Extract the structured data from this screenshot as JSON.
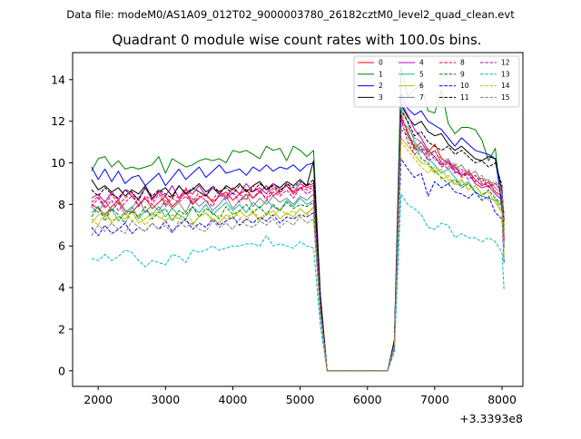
{
  "suptitle": "Data file: modeM0/AS1A09_012T02_9000003780_26182cztM0_level2_quad_clean.evt",
  "chart_data": {
    "type": "line",
    "title": "Quadrant 0 module wise count rates with 100.0s bins.",
    "xlabel": "",
    "ylabel": "",
    "x_offset_label": "+3.3393e8",
    "xlim": [
      1620,
      8310
    ],
    "ylim": [
      -0.75,
      15.3
    ],
    "xticks": [
      2000,
      3000,
      4000,
      5000,
      6000,
      7000,
      8000
    ],
    "yticks": [
      0,
      2,
      4,
      6,
      8,
      10,
      12,
      14
    ],
    "grid": false,
    "legend_position": "top-right",
    "x": [
      1900,
      2000,
      2100,
      2200,
      2300,
      2400,
      2500,
      2600,
      2700,
      2800,
      2900,
      3000,
      3100,
      3200,
      3300,
      3400,
      3500,
      3600,
      3700,
      3800,
      3900,
      4000,
      4100,
      4200,
      4300,
      4400,
      4500,
      4600,
      4700,
      4800,
      4900,
      5000,
      5100,
      5200,
      5300,
      5400,
      5500,
      5600,
      5700,
      5800,
      5900,
      6000,
      6100,
      6200,
      6300,
      6400,
      6500,
      6600,
      6700,
      6800,
      6900,
      7000,
      7100,
      7200,
      7300,
      7400,
      7500,
      7600,
      7700,
      7800,
      7900,
      8000,
      8030
    ],
    "series": [
      {
        "name": "0",
        "color": "#ff0000",
        "dash": "solid",
        "values": [
          8.0,
          7.8,
          7.5,
          7.9,
          8.2,
          7.7,
          7.6,
          8.0,
          8.3,
          7.8,
          8.1,
          8.4,
          7.9,
          8.2,
          8.6,
          8.0,
          8.3,
          8.5,
          8.1,
          8.4,
          8.6,
          8.2,
          8.5,
          8.7,
          8.3,
          8.6,
          8.9,
          8.4,
          8.7,
          8.9,
          8.5,
          8.8,
          8.9,
          9.0,
          3.3,
          0.0,
          0.0,
          0.0,
          0.0,
          0.0,
          0.0,
          0.0,
          0.0,
          0.0,
          0.0,
          1.3,
          12.2,
          11.5,
          10.7,
          11.0,
          10.5,
          10.9,
          10.2,
          10.0,
          9.8,
          9.4,
          9.6,
          9.2,
          8.9,
          9.1,
          8.6,
          8.4,
          6.2
        ]
      },
      {
        "name": "1",
        "color": "#008000",
        "dash": "solid",
        "values": [
          9.6,
          10.2,
          10.3,
          9.8,
          10.1,
          9.7,
          9.8,
          9.7,
          9.8,
          9.9,
          10.3,
          9.5,
          10.2,
          10.0,
          9.8,
          9.9,
          10.1,
          10.2,
          10.1,
          10.2,
          10.0,
          10.6,
          10.5,
          10.6,
          10.4,
          10.2,
          10.8,
          10.6,
          10.7,
          10.1,
          10.8,
          10.6,
          10.3,
          10.6,
          3.8,
          0.0,
          0.0,
          0.0,
          0.0,
          0.0,
          0.0,
          0.0,
          0.0,
          0.0,
          0.0,
          1.5,
          14.6,
          13.2,
          13.5,
          13.8,
          12.5,
          12.4,
          13.5,
          11.9,
          11.4,
          11.7,
          11.7,
          11.6,
          11.1,
          10.1,
          10.7,
          7.6,
          7.0
        ]
      },
      {
        "name": "2",
        "color": "#0000ff",
        "dash": "solid",
        "values": [
          9.8,
          9.2,
          9.7,
          9.1,
          9.6,
          9.0,
          9.3,
          9.4,
          8.9,
          9.2,
          9.5,
          8.9,
          9.3,
          9.7,
          9.2,
          9.5,
          9.8,
          9.3,
          9.6,
          9.9,
          9.5,
          9.6,
          9.7,
          9.4,
          9.8,
          9.6,
          9.9,
          9.6,
          9.8,
          9.7,
          9.9,
          9.6,
          9.9,
          10.0,
          3.6,
          0.0,
          0.0,
          0.0,
          0.0,
          0.0,
          0.0,
          0.0,
          0.0,
          0.0,
          0.0,
          1.4,
          13.3,
          12.6,
          12.3,
          12.5,
          12.0,
          11.8,
          11.6,
          11.2,
          10.8,
          11.2,
          10.9,
          10.6,
          10.5,
          10.4,
          10.2,
          8.0,
          7.6
        ]
      },
      {
        "name": "3",
        "color": "#000000",
        "dash": "solid",
        "values": [
          9.2,
          8.7,
          8.9,
          8.6,
          8.8,
          8.4,
          8.7,
          8.5,
          8.9,
          8.3,
          8.6,
          8.8,
          8.4,
          8.9,
          8.5,
          8.7,
          9.0,
          8.6,
          8.8,
          8.5,
          8.9,
          8.7,
          9.0,
          8.6,
          8.9,
          9.1,
          8.7,
          9.0,
          8.8,
          9.1,
          8.9,
          9.2,
          8.9,
          10.1,
          3.5,
          0.0,
          0.0,
          0.0,
          0.0,
          0.0,
          0.0,
          0.0,
          0.0,
          0.0,
          0.0,
          1.4,
          12.8,
          12.2,
          11.8,
          12.0,
          11.5,
          11.3,
          11.4,
          10.9,
          10.6,
          10.8,
          10.5,
          10.2,
          10.1,
          10.3,
          10.2,
          8.6,
          7.2
        ]
      },
      {
        "name": "4",
        "color": "#bf00bf",
        "dash": "solid",
        "values": [
          8.3,
          8.5,
          8.1,
          8.6,
          8.2,
          8.7,
          8.4,
          8.3,
          8.8,
          8.2,
          8.6,
          8.4,
          8.9,
          8.3,
          8.7,
          8.5,
          8.9,
          8.4,
          8.8,
          8.6,
          8.3,
          8.8,
          8.5,
          9.0,
          8.6,
          8.8,
          8.5,
          9.0,
          8.7,
          8.9,
          8.6,
          9.0,
          8.8,
          8.9,
          3.2,
          0.0,
          0.0,
          0.0,
          0.0,
          0.0,
          0.0,
          0.0,
          0.0,
          0.0,
          0.0,
          1.3,
          12.9,
          12.3,
          11.6,
          11.2,
          10.6,
          10.3,
          9.9,
          10.1,
          9.6,
          9.4,
          9.5,
          9.0,
          8.8,
          8.9,
          8.5,
          8.2,
          6.0
        ]
      },
      {
        "name": "5",
        "color": "#20b2aa",
        "dash": "solid",
        "values": [
          7.6,
          7.9,
          7.4,
          7.8,
          7.2,
          7.6,
          7.9,
          7.3,
          7.7,
          7.5,
          7.9,
          7.4,
          7.8,
          7.5,
          7.3,
          7.9,
          7.6,
          8.0,
          7.5,
          7.8,
          8.1,
          7.7,
          8.0,
          7.6,
          8.1,
          7.8,
          8.2,
          7.9,
          7.7,
          8.2,
          7.9,
          8.3,
          8.0,
          8.2,
          3.0,
          0.0,
          0.0,
          0.0,
          0.0,
          0.0,
          0.0,
          0.0,
          0.0,
          0.0,
          0.0,
          1.2,
          12.7,
          11.9,
          11.0,
          10.6,
          10.2,
          9.9,
          9.5,
          9.7,
          9.3,
          8.9,
          9.1,
          8.6,
          8.4,
          8.3,
          8.2,
          7.9,
          5.9
        ]
      },
      {
        "name": "6",
        "color": "#bfbf00",
        "dash": "solid",
        "values": [
          7.1,
          7.5,
          7.6,
          7.2,
          7.4,
          7.3,
          7.7,
          7.1,
          7.3,
          7.6,
          7.4,
          7.2,
          7.5,
          7.3,
          7.2,
          7.0,
          7.4,
          7.6,
          7.3,
          7.1,
          7.5,
          7.3,
          7.7,
          7.4,
          7.6,
          7.2,
          7.5,
          7.7,
          7.3,
          7.6,
          7.4,
          7.8,
          7.5,
          7.9,
          2.9,
          0.0,
          0.0,
          0.0,
          0.0,
          0.0,
          0.0,
          0.0,
          0.0,
          0.0,
          0.0,
          1.2,
          11.2,
          10.8,
          10.4,
          10.0,
          9.9,
          9.5,
          9.7,
          9.2,
          9.0,
          9.2,
          8.7,
          8.9,
          8.5,
          8.6,
          8.1,
          7.6,
          5.4
        ]
      },
      {
        "name": "7",
        "color": "#808080",
        "dash": "solid",
        "values": [
          7.9,
          7.6,
          8.2,
          7.7,
          8.1,
          7.5,
          7.8,
          8.3,
          7.6,
          8.0,
          7.7,
          8.2,
          7.8,
          8.1,
          7.6,
          8.3,
          7.9,
          8.2,
          7.7,
          8.0,
          8.4,
          7.8,
          8.2,
          8.5,
          7.9,
          8.3,
          8.0,
          8.4,
          8.1,
          8.3,
          8.0,
          8.4,
          8.2,
          8.5,
          3.1,
          0.0,
          0.0,
          0.0,
          0.0,
          0.0,
          0.0,
          0.0,
          0.0,
          0.0,
          0.0,
          1.3,
          12.0,
          11.7,
          11.2,
          11.0,
          10.4,
          10.6,
          10.0,
          10.2,
          9.7,
          9.9,
          9.4,
          9.6,
          9.1,
          9.2,
          8.8,
          8.5,
          6.4
        ]
      },
      {
        "name": "8",
        "color": "#ff0000",
        "dash": "dashed",
        "values": [
          8.1,
          8.4,
          7.9,
          8.5,
          8.0,
          8.3,
          8.6,
          7.9,
          8.4,
          8.2,
          8.7,
          8.0,
          8.5,
          8.3,
          8.8,
          8.1,
          8.6,
          8.4,
          8.2,
          8.7,
          8.4,
          8.8,
          8.5,
          8.2,
          8.9,
          8.6,
          8.3,
          8.8,
          8.5,
          9.0,
          8.6,
          8.8,
          8.7,
          8.8,
          3.2,
          0.0,
          0.0,
          0.0,
          0.0,
          0.0,
          0.0,
          0.0,
          0.0,
          0.0,
          0.0,
          1.3,
          12.4,
          11.3,
          10.6,
          10.8,
          10.3,
          10.6,
          10.0,
          9.7,
          9.9,
          9.3,
          9.5,
          9.1,
          9.3,
          8.8,
          9.0,
          8.7,
          6.3
        ]
      },
      {
        "name": "9",
        "color": "#008000",
        "dash": "dashed",
        "values": [
          7.4,
          7.9,
          7.2,
          7.8,
          7.5,
          7.1,
          7.7,
          7.4,
          7.9,
          7.3,
          7.6,
          7.8,
          7.2,
          7.7,
          7.5,
          7.9,
          7.4,
          7.8,
          7.6,
          7.3,
          7.9,
          7.5,
          7.7,
          8.0,
          7.6,
          7.9,
          7.5,
          8.0,
          7.7,
          8.1,
          7.8,
          8.0,
          7.9,
          8.1,
          3.0,
          0.0,
          0.0,
          0.0,
          0.0,
          0.0,
          0.0,
          0.0,
          0.0,
          0.0,
          0.0,
          1.2,
          11.6,
          11.3,
          10.8,
          10.2,
          10.0,
          9.6,
          9.3,
          9.0,
          9.2,
          8.8,
          9.0,
          8.6,
          8.4,
          8.7,
          8.3,
          8.0,
          5.8
        ]
      },
      {
        "name": "10",
        "color": "#0000ff",
        "dash": "dashed",
        "values": [
          6.9,
          6.5,
          7.0,
          6.6,
          6.8,
          7.1,
          6.6,
          6.9,
          6.7,
          7.1,
          6.8,
          7.2,
          6.7,
          7.0,
          7.3,
          6.8,
          7.1,
          6.9,
          7.3,
          7.0,
          7.2,
          7.4,
          7.0,
          7.3,
          7.1,
          7.4,
          7.2,
          7.5,
          7.1,
          7.4,
          7.3,
          7.5,
          7.4,
          7.6,
          2.8,
          0.0,
          0.0,
          0.0,
          0.0,
          0.0,
          0.0,
          0.0,
          0.0,
          0.0,
          0.0,
          1.1,
          10.2,
          9.7,
          9.3,
          9.5,
          8.4,
          9.1,
          8.8,
          9.0,
          8.6,
          8.5,
          8.3,
          8.6,
          8.2,
          8.4,
          7.6,
          7.3,
          5.2
        ]
      },
      {
        "name": "11",
        "color": "#000000",
        "dash": "dashed",
        "values": [
          8.7,
          8.4,
          8.8,
          8.5,
          8.3,
          8.7,
          8.6,
          8.2,
          8.8,
          8.4,
          8.7,
          8.5,
          8.3,
          8.9,
          8.5,
          8.8,
          8.6,
          8.4,
          8.9,
          8.6,
          8.8,
          8.5,
          8.9,
          8.7,
          8.6,
          9.0,
          8.7,
          8.9,
          8.6,
          9.0,
          8.8,
          9.1,
          8.9,
          9.2,
          3.4,
          0.0,
          0.0,
          0.0,
          0.0,
          0.0,
          0.0,
          0.0,
          0.0,
          0.0,
          0.0,
          1.4,
          12.5,
          12.0,
          11.3,
          11.5,
          11.0,
          10.8,
          10.6,
          10.8,
          10.4,
          10.6,
          10.3,
          10.0,
          10.1,
          9.8,
          10.0,
          8.9,
          6.8
        ]
      },
      {
        "name": "12",
        "color": "#bf00bf",
        "dash": "dashed",
        "values": [
          7.9,
          8.3,
          7.8,
          8.2,
          7.7,
          8.1,
          8.4,
          7.9,
          8.3,
          8.0,
          8.5,
          7.9,
          8.3,
          8.1,
          8.4,
          8.0,
          8.4,
          8.2,
          7.9,
          8.5,
          8.2,
          8.6,
          8.1,
          8.5,
          8.3,
          8.7,
          8.2,
          8.6,
          8.4,
          8.7,
          8.3,
          8.8,
          8.5,
          8.7,
          3.2,
          0.0,
          0.0,
          0.0,
          0.0,
          0.0,
          0.0,
          0.0,
          0.0,
          0.0,
          0.0,
          1.3,
          12.1,
          11.0,
          10.4,
          10.7,
          10.1,
          10.3,
          9.8,
          10.0,
          9.5,
          9.7,
          9.2,
          9.4,
          9.0,
          8.9,
          9.0,
          8.6,
          6.2
        ]
      },
      {
        "name": "13",
        "color": "#00bfbf",
        "dash": "dashed",
        "values": [
          5.4,
          5.3,
          5.6,
          5.3,
          5.5,
          5.8,
          5.7,
          5.3,
          5.0,
          5.3,
          5.2,
          5.1,
          5.6,
          5.5,
          5.2,
          5.8,
          5.7,
          5.8,
          6.0,
          5.8,
          5.9,
          6.0,
          6.0,
          6.1,
          6.1,
          6.0,
          6.5,
          6.0,
          6.1,
          6.0,
          5.9,
          6.2,
          6.0,
          5.9,
          2.2,
          0.0,
          0.0,
          0.0,
          0.0,
          0.0,
          0.0,
          0.0,
          0.0,
          0.0,
          0.0,
          0.9,
          8.5,
          8.0,
          7.8,
          7.5,
          6.9,
          6.8,
          7.1,
          7.0,
          6.4,
          6.6,
          6.4,
          6.4,
          6.2,
          6.4,
          6.2,
          5.7,
          3.9
        ]
      },
      {
        "name": "14",
        "color": "#bfbf00",
        "dash": "dashed",
        "values": [
          7.3,
          7.0,
          7.6,
          7.1,
          7.4,
          7.6,
          7.2,
          7.5,
          7.0,
          7.4,
          7.7,
          7.2,
          7.5,
          7.3,
          7.7,
          7.1,
          7.4,
          7.6,
          7.2,
          7.5,
          7.3,
          7.6,
          7.4,
          7.2,
          7.7,
          7.3,
          7.6,
          7.4,
          7.8,
          7.5,
          7.7,
          7.4,
          7.6,
          7.8,
          2.9,
          0.0,
          0.0,
          0.0,
          0.0,
          0.0,
          0.0,
          0.0,
          0.0,
          0.0,
          0.0,
          1.2,
          11.0,
          10.6,
          10.2,
          9.8,
          9.5,
          9.8,
          9.2,
          9.4,
          8.9,
          9.1,
          8.7,
          8.9,
          8.5,
          8.2,
          8.3,
          7.6,
          5.5
        ]
      },
      {
        "name": "15",
        "color": "#808080",
        "dash": "dashed",
        "values": [
          6.5,
          7.0,
          6.7,
          7.1,
          6.8,
          6.6,
          7.2,
          6.9,
          6.7,
          7.1,
          6.8,
          7.0,
          6.6,
          7.2,
          6.9,
          7.1,
          6.8,
          6.7,
          7.2,
          6.9,
          7.1,
          6.8,
          7.3,
          7.0,
          6.9,
          7.2,
          7.0,
          7.3,
          6.9,
          7.2,
          7.0,
          7.4,
          7.1,
          7.3,
          2.7,
          0.0,
          0.0,
          0.0,
          0.0,
          0.0,
          0.0,
          0.0,
          0.0,
          0.0,
          0.0,
          1.1,
          11.8,
          11.4,
          10.9,
          10.5,
          10.7,
          10.1,
          10.3,
          9.8,
          10.0,
          9.5,
          9.7,
          9.2,
          9.4,
          9.0,
          9.1,
          8.8,
          6.7
        ]
      }
    ]
  }
}
